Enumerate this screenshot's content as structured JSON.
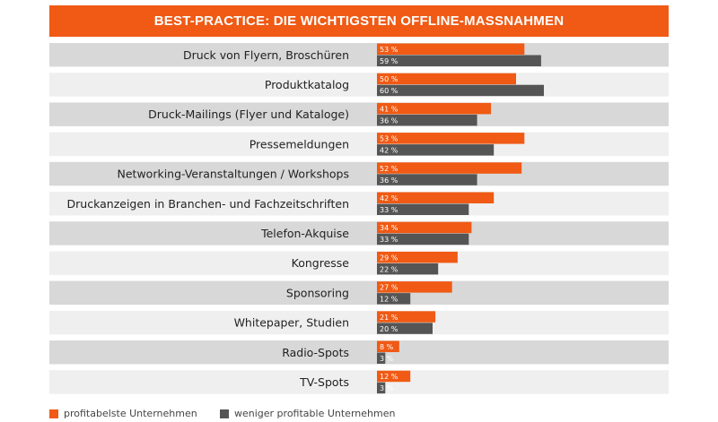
{
  "colors": {
    "accent": "#f05a14",
    "dark": "#555555",
    "row_dark": "#d8d8d8",
    "row_light": "#efefef",
    "title_text": "#ffffff"
  },
  "chart_data": {
    "type": "bar",
    "orientation": "horizontal",
    "title": "BEST-PRACTICE: DIE WICHTIGSTEN OFFLINE-MASSNAHMEN",
    "categories": [
      "Druck von Flyern, Broschüren",
      "Produktkatalog",
      "Druck-Mailings (Flyer und Kataloge)",
      "Pressemeldungen",
      "Networking-Veranstaltungen / Workshops",
      "Druckanzeigen in Branchen- und Fachzeitschriften",
      "Telefon-Akquise",
      "Kongresse",
      "Sponsoring",
      "Whitepaper, Studien",
      "Radio-Spots",
      "TV-Spots"
    ],
    "series": [
      {
        "name": "profitabelste Unternehmen",
        "color": "#f05a14",
        "values": [
          53,
          50,
          41,
          53,
          52,
          42,
          34,
          29,
          27,
          21,
          8,
          12
        ]
      },
      {
        "name": "weniger profitable Unternehmen",
        "color": "#555555",
        "values": [
          59,
          60,
          36,
          42,
          36,
          33,
          33,
          22,
          12,
          20,
          3,
          3
        ]
      }
    ],
    "value_suffix": " %",
    "xlim": [
      0,
      100
    ],
    "grid": false,
    "legend_position": "bottom-left"
  }
}
